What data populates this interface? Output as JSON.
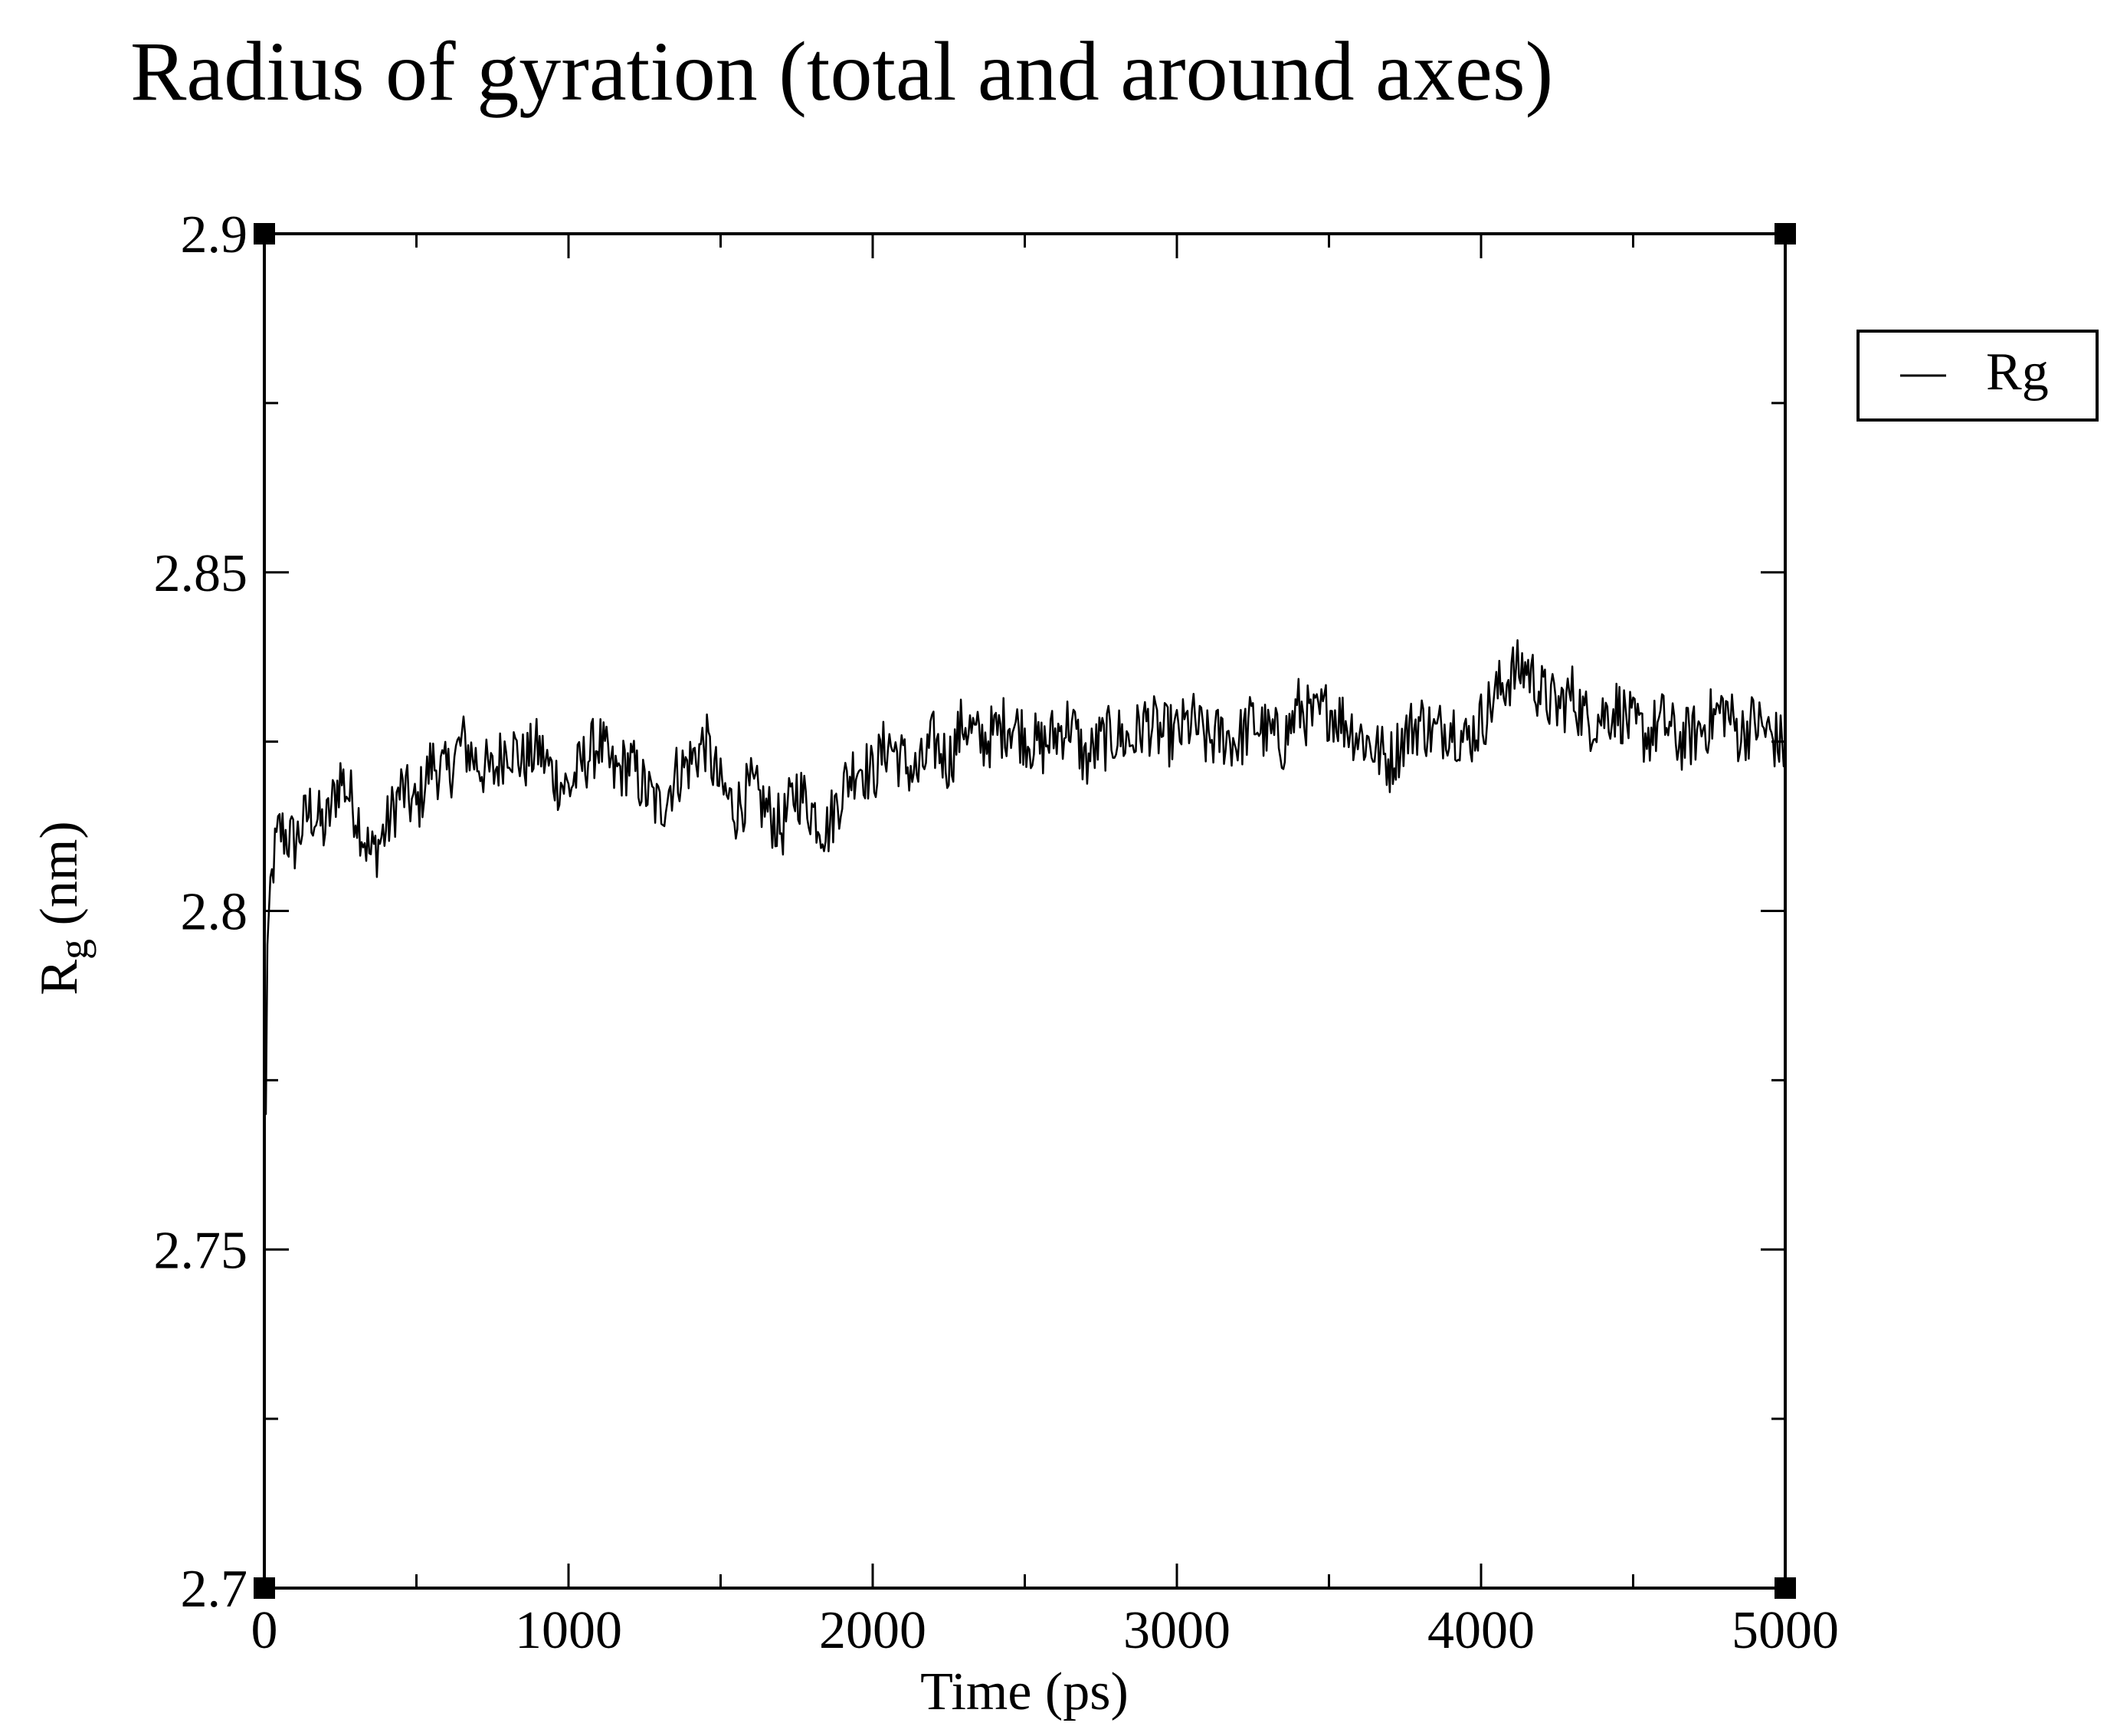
{
  "chart_data": {
    "type": "line",
    "title": "Radius of gyration (total and around axes)",
    "xlabel": "Time (ps)",
    "ylabel_main": "R",
    "ylabel_sub": "g",
    "ylabel_unit": " (nm)",
    "xlim": [
      0,
      5000
    ],
    "ylim": [
      2.7,
      2.9
    ],
    "x_major_ticks": [
      0,
      1000,
      2000,
      3000,
      4000,
      5000
    ],
    "x_tick_labels": [
      "0",
      "1000",
      "2000",
      "3000",
      "4000",
      "5000"
    ],
    "x_minor_step": 500,
    "y_major_ticks": [
      2.7,
      2.75,
      2.8,
      2.85,
      2.9
    ],
    "y_tick_labels": [
      "2.7",
      "2.75",
      "2.8",
      "2.85",
      "2.9"
    ],
    "y_minor_step": 0.025,
    "grid": false,
    "legend_position": "outside-top-right",
    "series": [
      {
        "name": "Rg",
        "color": "#000000",
        "x": [
          0,
          5,
          10,
          20,
          50,
          100,
          150,
          200,
          250,
          300,
          350,
          400,
          450,
          500,
          550,
          600,
          650,
          700,
          750,
          800,
          850,
          900,
          950,
          1000,
          1050,
          1100,
          1150,
          1200,
          1250,
          1300,
          1350,
          1400,
          1450,
          1500,
          1550,
          1600,
          1650,
          1700,
          1750,
          1800,
          1850,
          1900,
          1950,
          2000,
          2050,
          2100,
          2150,
          2200,
          2250,
          2300,
          2350,
          2400,
          2450,
          2500,
          2550,
          2600,
          2650,
          2700,
          2750,
          2800,
          2850,
          2900,
          2950,
          3000,
          3050,
          3100,
          3150,
          3200,
          3250,
          3300,
          3350,
          3400,
          3450,
          3500,
          3550,
          3600,
          3650,
          3700,
          3750,
          3800,
          3850,
          3900,
          3950,
          4000,
          4050,
          4100,
          4150,
          4200,
          4250,
          4300,
          4350,
          4400,
          4450,
          4500,
          4550,
          4600,
          4650,
          4700,
          4750,
          4800,
          4850,
          4900,
          4950,
          5000
        ],
        "values": [
          2.78,
          2.77,
          2.795,
          2.805,
          2.812,
          2.81,
          2.815,
          2.812,
          2.82,
          2.815,
          2.808,
          2.812,
          2.818,
          2.815,
          2.822,
          2.82,
          2.825,
          2.822,
          2.82,
          2.825,
          2.822,
          2.824,
          2.82,
          2.818,
          2.822,
          2.825,
          2.82,
          2.822,
          2.818,
          2.815,
          2.82,
          2.822,
          2.825,
          2.818,
          2.815,
          2.818,
          2.815,
          2.812,
          2.818,
          2.815,
          2.812,
          2.818,
          2.822,
          2.82,
          2.825,
          2.822,
          2.82,
          2.825,
          2.822,
          2.828,
          2.825,
          2.826,
          2.828,
          2.826,
          2.824,
          2.826,
          2.828,
          2.822,
          2.825,
          2.826,
          2.825,
          2.828,
          2.826,
          2.826,
          2.828,
          2.825,
          2.826,
          2.825,
          2.828,
          2.826,
          2.825,
          2.83,
          2.828,
          2.83,
          2.828,
          2.826,
          2.824,
          2.822,
          2.826,
          2.828,
          2.826,
          2.828,
          2.825,
          2.828,
          2.832,
          2.835,
          2.836,
          2.832,
          2.83,
          2.832,
          2.828,
          2.829,
          2.83,
          2.827,
          2.826,
          2.828,
          2.825,
          2.826,
          2.828,
          2.83,
          2.826,
          2.828,
          2.826,
          2.824
        ]
      }
    ]
  }
}
